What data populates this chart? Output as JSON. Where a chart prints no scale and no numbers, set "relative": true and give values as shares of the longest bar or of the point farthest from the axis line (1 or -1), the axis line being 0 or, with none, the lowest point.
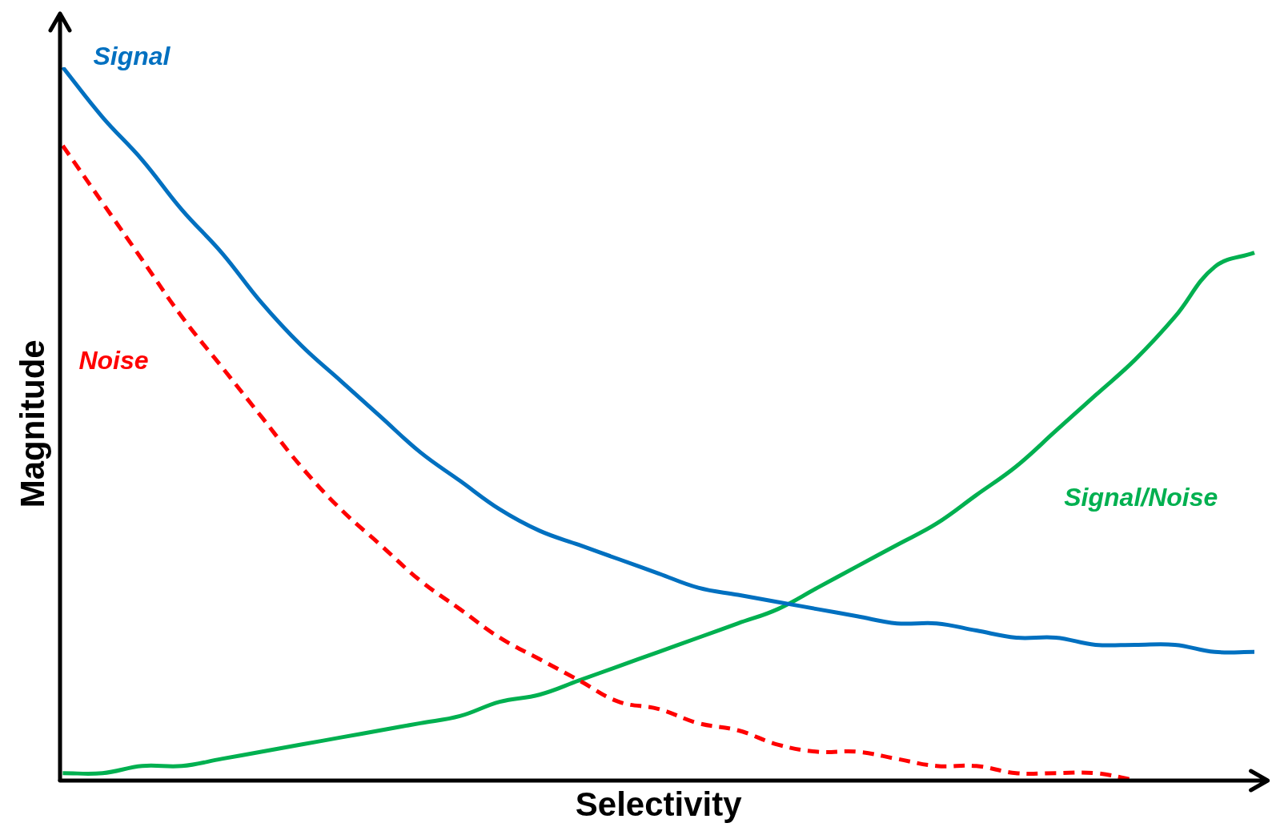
{
  "chart_data": {
    "type": "line",
    "relative": true,
    "xlabel": "Selectivity",
    "ylabel": "Magnitude",
    "legend": false,
    "grid": false,
    "marker": "none",
    "categories": [
      null,
      null,
      null,
      null,
      null,
      null,
      null,
      null,
      null,
      null,
      null,
      null,
      null,
      null,
      null,
      null,
      null,
      null,
      null,
      null,
      null,
      null,
      null,
      null,
      null,
      null,
      null,
      null,
      null,
      null,
      null
    ],
    "series": [
      {
        "name": "Signal",
        "color": "#0070c0",
        "line_style": "solid",
        "values": [
          1.0,
          0.93,
          0.87,
          0.8,
          0.74,
          0.67,
          0.61,
          0.56,
          0.51,
          0.46,
          0.42,
          0.38,
          0.35,
          0.33,
          0.31,
          0.29,
          0.27,
          0.26,
          0.25,
          0.24,
          0.23,
          0.22,
          0.22,
          0.21,
          0.2,
          0.2,
          0.19,
          0.19,
          0.19,
          0.18,
          0.18
        ]
      },
      {
        "name": "Noise",
        "color": "#ff0000",
        "line_style": "dashed",
        "values": [
          0.89,
          0.81,
          0.73,
          0.65,
          0.58,
          0.51,
          0.44,
          0.38,
          0.33,
          0.28,
          0.24,
          0.2,
          0.17,
          0.14,
          0.11,
          0.1,
          0.08,
          0.07,
          0.05,
          0.04,
          0.04,
          0.03,
          0.02,
          0.02,
          0.01,
          0.01,
          0.01,
          0.0,
          null,
          null,
          null
        ]
      },
      {
        "name": "Signal/Noise",
        "color": "#00b050",
        "line_style": "solid",
        "values": [
          0.01,
          0.01,
          0.02,
          0.02,
          0.03,
          0.04,
          0.05,
          0.06,
          0.07,
          0.08,
          0.09,
          0.11,
          0.12,
          0.14,
          0.16,
          0.18,
          0.2,
          0.22,
          0.24,
          0.27,
          0.3,
          0.33,
          0.36,
          0.4,
          0.44,
          0.49,
          0.54,
          0.59,
          0.65,
          0.72,
          0.74
        ]
      }
    ]
  }
}
